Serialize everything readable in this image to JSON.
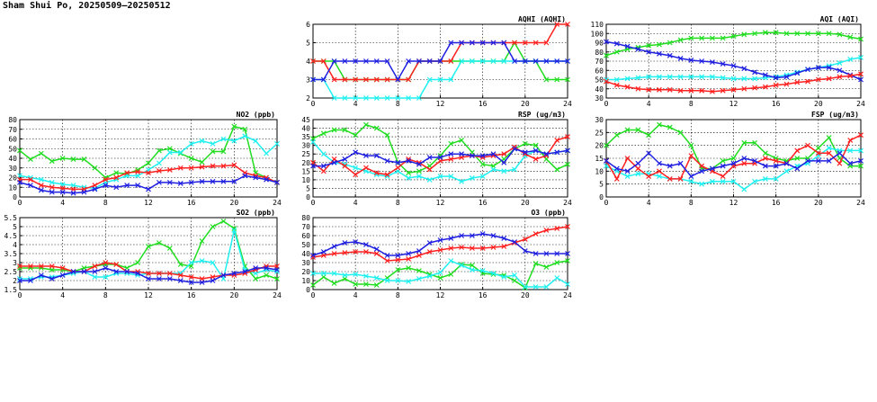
{
  "page": {
    "title": "Sham Shui Po, 20250509—20250512"
  },
  "colors": {
    "red": "#ff2020",
    "blue": "#2020e0",
    "green": "#20dd20",
    "cyan": "#20f0f0",
    "grid": "#000000"
  },
  "chart_data": [
    {
      "id": "aqhi",
      "type": "line",
      "title": "AQHI (AQHI)",
      "xlim": [
        0,
        24
      ],
      "ylim": [
        2,
        6
      ],
      "xticks": [
        0,
        4,
        8,
        12,
        16,
        20,
        24
      ],
      "yticks": [
        2,
        3,
        4,
        5,
        6
      ],
      "grid": true,
      "series": [
        {
          "color": "green",
          "values": [
            4,
            4,
            4,
            3,
            3,
            3,
            3,
            3,
            3,
            3,
            4,
            4,
            4,
            4,
            4,
            4,
            4,
            4,
            4,
            5,
            4,
            4,
            3,
            3,
            3
          ]
        },
        {
          "color": "cyan",
          "values": [
            3,
            3,
            2,
            2,
            2,
            2,
            2,
            2,
            2,
            2,
            2,
            3,
            3,
            3,
            4,
            4,
            4,
            4,
            4,
            4,
            4,
            4,
            4,
            4,
            4
          ]
        },
        {
          "color": "red",
          "values": [
            4,
            4,
            3,
            3,
            3,
            3,
            3,
            3,
            3,
            3,
            4,
            4,
            4,
            4,
            5,
            5,
            5,
            5,
            5,
            5,
            5,
            5,
            5,
            6,
            6
          ]
        },
        {
          "color": "blue",
          "values": [
            3,
            3,
            4,
            4,
            4,
            4,
            4,
            4,
            3,
            4,
            4,
            4,
            4,
            5,
            5,
            5,
            5,
            5,
            5,
            4,
            4,
            4,
            4,
            4,
            4
          ]
        }
      ]
    },
    {
      "id": "aqi",
      "type": "line",
      "title": "AQI (AQI)",
      "xlim": [
        0,
        24
      ],
      "ylim": [
        30,
        110
      ],
      "xticks": [
        0,
        4,
        8,
        12,
        16,
        20,
        24
      ],
      "yticks": [
        30,
        40,
        50,
        60,
        70,
        80,
        90,
        100,
        110
      ],
      "grid": true,
      "series": [
        {
          "color": "green",
          "values": [
            76,
            80,
            83,
            85,
            87,
            88,
            90,
            93,
            95,
            95,
            95,
            95,
            97,
            99,
            100,
            101,
            101,
            100,
            100,
            100,
            100,
            100,
            99,
            96,
            94
          ]
        },
        {
          "color": "cyan",
          "values": [
            50,
            50,
            51,
            52,
            53,
            53,
            53,
            53,
            53,
            53,
            53,
            52,
            51,
            51,
            51,
            52,
            53,
            55,
            58,
            61,
            63,
            65,
            68,
            72,
            74
          ]
        },
        {
          "color": "blue",
          "values": [
            91,
            89,
            86,
            83,
            80,
            78,
            76,
            73,
            71,
            70,
            69,
            67,
            65,
            62,
            58,
            55,
            52,
            53,
            57,
            61,
            63,
            63,
            60,
            55,
            50
          ]
        },
        {
          "color": "red",
          "values": [
            48,
            44,
            42,
            40,
            39,
            39,
            39,
            38,
            38,
            38,
            37,
            38,
            39,
            40,
            41,
            42,
            44,
            45,
            47,
            48,
            50,
            51,
            53,
            54,
            56
          ]
        }
      ]
    },
    {
      "id": "no2",
      "type": "line",
      "title": "NO2 (ppb)",
      "xlim": [
        0,
        24
      ],
      "ylim": [
        0,
        80
      ],
      "xticks": [
        0,
        4,
        8,
        12,
        16,
        20,
        24
      ],
      "yticks": [
        0,
        10,
        20,
        30,
        40,
        50,
        60,
        70,
        80
      ],
      "grid": true,
      "series": [
        {
          "color": "green",
          "values": [
            48,
            39,
            45,
            37,
            40,
            39,
            39,
            30,
            20,
            25,
            24,
            28,
            35,
            48,
            50,
            45,
            40,
            36,
            47,
            47,
            73,
            70,
            25,
            20,
            15
          ]
        },
        {
          "color": "cyan",
          "values": [
            22,
            20,
            18,
            15,
            13,
            12,
            10,
            9,
            15,
            18,
            22,
            22,
            28,
            35,
            46,
            46,
            55,
            58,
            55,
            60,
            58,
            63,
            58,
            45,
            55
          ]
        },
        {
          "color": "red",
          "values": [
            18,
            18,
            12,
            10,
            9,
            8,
            8,
            12,
            18,
            20,
            25,
            26,
            25,
            27,
            28,
            30,
            30,
            31,
            32,
            32,
            33,
            25,
            22,
            20,
            15
          ]
        },
        {
          "color": "blue",
          "values": [
            15,
            12,
            7,
            5,
            5,
            4,
            5,
            8,
            12,
            10,
            12,
            12,
            8,
            15,
            15,
            14,
            15,
            16,
            16,
            16,
            16,
            22,
            20,
            18,
            15
          ]
        }
      ]
    },
    {
      "id": "rsp",
      "type": "line",
      "title": "RSP (ug/m3)",
      "xlim": [
        0,
        24
      ],
      "ylim": [
        0,
        45
      ],
      "xticks": [
        0,
        4,
        8,
        12,
        16,
        20,
        24
      ],
      "yticks": [
        0,
        5,
        10,
        15,
        20,
        25,
        30,
        35,
        40,
        45
      ],
      "grid": true,
      "series": [
        {
          "color": "green",
          "values": [
            34,
            37,
            39,
            39,
            36,
            42,
            40,
            36,
            20,
            14,
            15,
            18,
            24,
            31,
            33,
            26,
            19,
            18,
            22,
            28,
            31,
            30,
            22,
            16,
            19
          ]
        },
        {
          "color": "cyan",
          "values": [
            32,
            25,
            20,
            19,
            17,
            15,
            13,
            12,
            15,
            11,
            12,
            10,
            12,
            12,
            9,
            11,
            12,
            16,
            15,
            16,
            24,
            27,
            25,
            26,
            27
          ]
        },
        {
          "color": "red",
          "values": [
            20,
            15,
            22,
            18,
            13,
            17,
            14,
            13,
            17,
            22,
            20,
            16,
            21,
            22,
            23,
            24,
            23,
            24,
            25,
            29,
            25,
            22,
            24,
            33,
            35
          ]
        },
        {
          "color": "blue",
          "values": [
            18,
            18,
            20,
            22,
            26,
            24,
            24,
            21,
            20,
            21,
            19,
            23,
            23,
            25,
            25,
            24,
            24,
            25,
            20,
            28,
            26,
            27,
            25,
            26,
            27
          ]
        }
      ]
    },
    {
      "id": "fsp",
      "type": "line",
      "title": "FSP (ug/m3)",
      "xlim": [
        0,
        24
      ],
      "ylim": [
        0,
        30
      ],
      "xticks": [
        0,
        4,
        8,
        12,
        16,
        20,
        24
      ],
      "yticks": [
        0,
        5,
        10,
        15,
        20,
        25,
        30
      ],
      "grid": true,
      "series": [
        {
          "color": "green",
          "values": [
            20,
            24,
            26,
            26,
            24,
            28,
            27,
            25,
            20,
            11,
            11,
            14,
            15,
            21,
            21,
            17,
            15,
            14,
            15,
            15,
            19,
            23,
            15,
            12,
            12
          ]
        },
        {
          "color": "cyan",
          "values": [
            12,
            10,
            8,
            9,
            9,
            8,
            7,
            7,
            6,
            5,
            6,
            6,
            6,
            3,
            6,
            7,
            7,
            10,
            12,
            13,
            16,
            19,
            18,
            18,
            18
          ]
        },
        {
          "color": "red",
          "values": [
            14,
            7,
            15,
            11,
            8,
            10,
            7,
            7,
            16,
            12,
            10,
            8,
            12,
            13,
            13,
            15,
            14,
            13,
            18,
            20,
            17,
            17,
            13,
            22,
            24
          ]
        },
        {
          "color": "blue",
          "values": [
            14,
            11,
            10,
            13,
            17,
            13,
            12,
            13,
            8,
            10,
            11,
            12,
            13,
            15,
            14,
            12,
            12,
            13,
            11,
            14,
            14,
            14,
            17,
            13,
            14
          ]
        }
      ]
    },
    {
      "id": "so2",
      "type": "line",
      "title": "SO2 (ppb)",
      "xlim": [
        0,
        24
      ],
      "ylim": [
        1.5,
        5.5
      ],
      "xticks": [
        0,
        4,
        8,
        12,
        16,
        20,
        24
      ],
      "yticks": [
        1.5,
        2.0,
        2.5,
        3.0,
        3.5,
        4.0,
        4.5,
        5.0,
        5.5
      ],
      "grid": true,
      "series": [
        {
          "color": "green",
          "values": [
            2.7,
            2.7,
            2.7,
            2.6,
            2.6,
            2.5,
            2.7,
            2.8,
            2.9,
            2.9,
            2.7,
            3.0,
            3.9,
            4.1,
            3.8,
            2.9,
            2.8,
            4.2,
            5.0,
            5.3,
            4.9,
            2.8,
            2.1,
            2.3,
            2.1
          ]
        },
        {
          "color": "cyan",
          "values": [
            2.1,
            2.1,
            2.2,
            2.2,
            2.3,
            2.4,
            2.5,
            2.2,
            2.2,
            2.4,
            2.4,
            2.3,
            2.4,
            2.4,
            2.4,
            2.4,
            3.0,
            3.1,
            3.0,
            2.1,
            4.8,
            2.6,
            2.4,
            2.6,
            2.5
          ]
        },
        {
          "color": "red",
          "values": [
            2.8,
            2.8,
            2.8,
            2.8,
            2.7,
            2.5,
            2.5,
            2.8,
            3.0,
            2.9,
            2.5,
            2.5,
            2.4,
            2.4,
            2.4,
            2.3,
            2.2,
            2.1,
            2.2,
            2.3,
            2.3,
            2.4,
            2.6,
            2.8,
            2.8
          ]
        },
        {
          "color": "blue",
          "values": [
            2.0,
            2.0,
            2.3,
            2.1,
            2.3,
            2.5,
            2.5,
            2.5,
            2.7,
            2.5,
            2.5,
            2.4,
            2.1,
            2.1,
            2.1,
            2.0,
            1.9,
            1.9,
            2.0,
            2.3,
            2.4,
            2.5,
            2.7,
            2.7,
            2.6
          ]
        }
      ]
    },
    {
      "id": "o3",
      "type": "line",
      "title": "O3 (ppb)",
      "xlim": [
        0,
        24
      ],
      "ylim": [
        0,
        80
      ],
      "xticks": [
        0,
        4,
        8,
        12,
        16,
        20,
        24
      ],
      "yticks": [
        0,
        10,
        20,
        30,
        40,
        50,
        60,
        70,
        80
      ],
      "grid": true,
      "series": [
        {
          "color": "green",
          "values": [
            5,
            14,
            7,
            12,
            6,
            6,
            5,
            13,
            22,
            24,
            21,
            17,
            13,
            17,
            28,
            27,
            18,
            17,
            16,
            10,
            2,
            29,
            25,
            30,
            32
          ]
        },
        {
          "color": "cyan",
          "values": [
            18,
            18,
            18,
            16,
            17,
            15,
            13,
            10,
            10,
            9,
            12,
            15,
            19,
            32,
            27,
            22,
            21,
            18,
            14,
            16,
            3,
            3,
            3,
            13,
            6
          ]
        },
        {
          "color": "red",
          "values": [
            36,
            38,
            40,
            41,
            42,
            42,
            40,
            32,
            33,
            34,
            38,
            42,
            44,
            46,
            47,
            46,
            46,
            47,
            48,
            52,
            56,
            62,
            66,
            68,
            70
          ]
        },
        {
          "color": "blue",
          "values": [
            38,
            42,
            48,
            52,
            53,
            50,
            45,
            38,
            38,
            40,
            43,
            52,
            55,
            57,
            60,
            60,
            62,
            60,
            57,
            53,
            43,
            40,
            40,
            40,
            40
          ]
        }
      ]
    }
  ]
}
